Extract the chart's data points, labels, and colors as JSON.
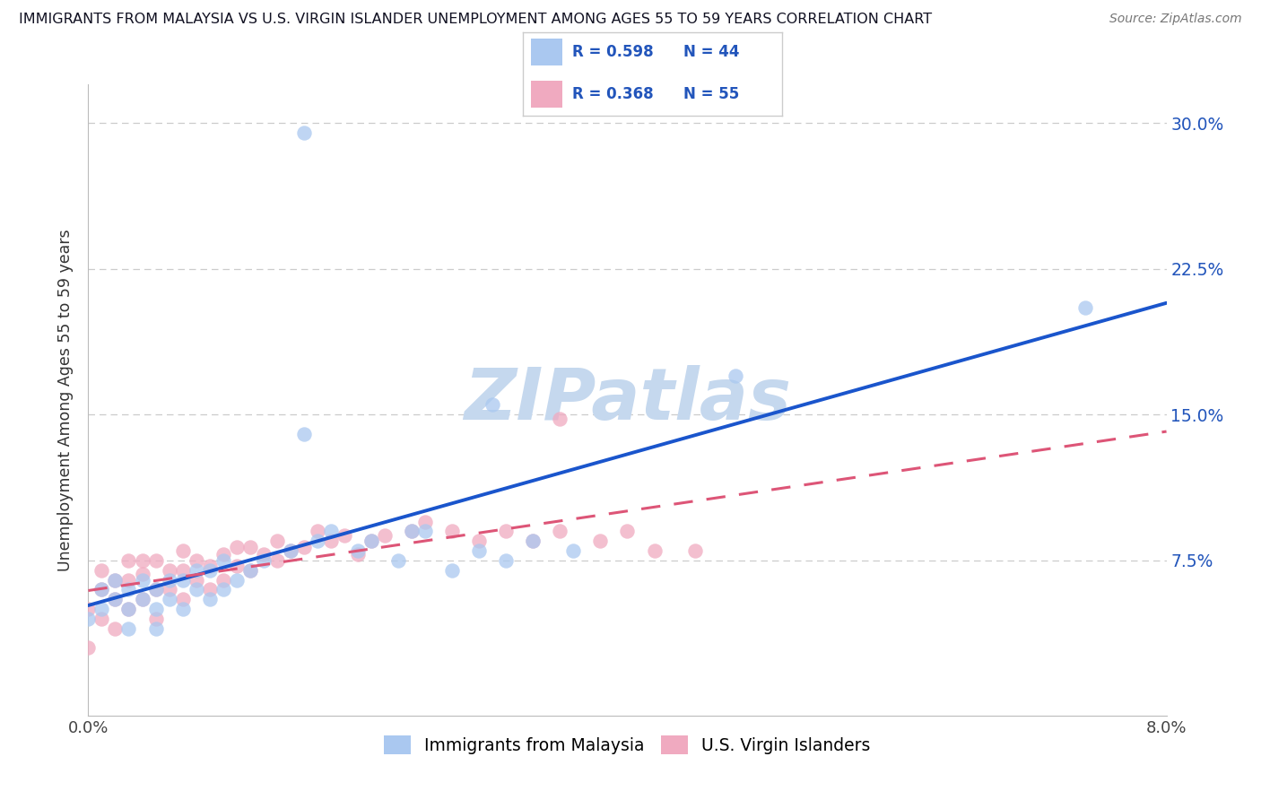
{
  "title": "IMMIGRANTS FROM MALAYSIA VS U.S. VIRGIN ISLANDER UNEMPLOYMENT AMONG AGES 55 TO 59 YEARS CORRELATION CHART",
  "source": "Source: ZipAtlas.com",
  "ylabel": "Unemployment Among Ages 55 to 59 years",
  "xlim": [
    0.0,
    0.08
  ],
  "ylim": [
    -0.005,
    0.32
  ],
  "xticks": [
    0.0,
    0.01,
    0.02,
    0.03,
    0.04,
    0.05,
    0.06,
    0.07,
    0.08
  ],
  "xtick_labels": [
    "0.0%",
    "",
    "",
    "",
    "",
    "",
    "",
    "",
    "8.0%"
  ],
  "yticks": [
    0.0,
    0.075,
    0.15,
    0.225,
    0.3
  ],
  "ytick_labels": [
    "",
    "7.5%",
    "15.0%",
    "22.5%",
    "30.0%"
  ],
  "R_blue": 0.598,
  "N_blue": 44,
  "R_pink": 0.368,
  "N_pink": 55,
  "series_blue_label": "Immigrants from Malaysia",
  "series_pink_label": "U.S. Virgin Islanders",
  "blue_scatter_color": "#aac8f0",
  "pink_scatter_color": "#f0aac0",
  "blue_line_color": "#1a55cc",
  "pink_line_color": "#dd5577",
  "legend_text_color": "#2255bb",
  "watermark_text": "ZIPatlas",
  "watermark_color": "#c5d8ee",
  "background_color": "#ffffff",
  "grid_color": "#cccccc",
  "title_color": "#111122",
  "source_color": "#777777",
  "ylabel_color": "#333333",
  "tick_color": "#2255bb",
  "blue_x": [
    0.0,
    0.001,
    0.001,
    0.002,
    0.002,
    0.003,
    0.003,
    0.003,
    0.004,
    0.004,
    0.005,
    0.005,
    0.005,
    0.006,
    0.006,
    0.007,
    0.007,
    0.008,
    0.008,
    0.009,
    0.009,
    0.01,
    0.01,
    0.011,
    0.012,
    0.013,
    0.015,
    0.016,
    0.017,
    0.018,
    0.02,
    0.021,
    0.023,
    0.024,
    0.025,
    0.027,
    0.029,
    0.031,
    0.033,
    0.036,
    0.016,
    0.03,
    0.048,
    0.074
  ],
  "blue_y": [
    0.045,
    0.05,
    0.06,
    0.055,
    0.065,
    0.04,
    0.05,
    0.06,
    0.055,
    0.065,
    0.04,
    0.05,
    0.06,
    0.055,
    0.065,
    0.05,
    0.065,
    0.06,
    0.07,
    0.055,
    0.07,
    0.06,
    0.075,
    0.065,
    0.07,
    0.075,
    0.08,
    0.14,
    0.085,
    0.09,
    0.08,
    0.085,
    0.075,
    0.09,
    0.09,
    0.07,
    0.08,
    0.075,
    0.085,
    0.08,
    0.295,
    0.155,
    0.17,
    0.205
  ],
  "pink_x": [
    0.0,
    0.0,
    0.001,
    0.001,
    0.001,
    0.002,
    0.002,
    0.002,
    0.003,
    0.003,
    0.003,
    0.004,
    0.004,
    0.004,
    0.005,
    0.005,
    0.005,
    0.006,
    0.006,
    0.007,
    0.007,
    0.007,
    0.008,
    0.008,
    0.009,
    0.009,
    0.01,
    0.01,
    0.011,
    0.011,
    0.012,
    0.012,
    0.013,
    0.014,
    0.014,
    0.015,
    0.016,
    0.017,
    0.018,
    0.019,
    0.02,
    0.021,
    0.022,
    0.024,
    0.025,
    0.027,
    0.029,
    0.031,
    0.033,
    0.035,
    0.035,
    0.038,
    0.04,
    0.042,
    0.045
  ],
  "pink_y": [
    0.03,
    0.05,
    0.045,
    0.06,
    0.07,
    0.04,
    0.055,
    0.065,
    0.05,
    0.065,
    0.075,
    0.055,
    0.068,
    0.075,
    0.045,
    0.06,
    0.075,
    0.06,
    0.07,
    0.055,
    0.07,
    0.08,
    0.065,
    0.075,
    0.06,
    0.072,
    0.065,
    0.078,
    0.072,
    0.082,
    0.07,
    0.082,
    0.078,
    0.075,
    0.085,
    0.08,
    0.082,
    0.09,
    0.085,
    0.088,
    0.078,
    0.085,
    0.088,
    0.09,
    0.095,
    0.09,
    0.085,
    0.09,
    0.085,
    0.148,
    0.09,
    0.085,
    0.09,
    0.08,
    0.08
  ]
}
